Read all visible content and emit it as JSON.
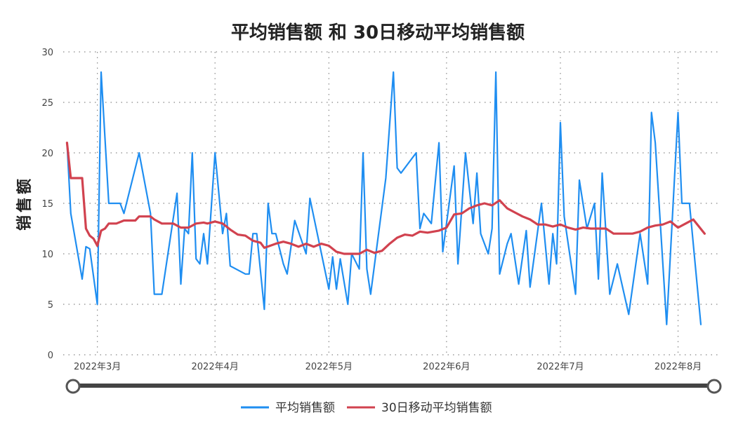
{
  "chart_data": {
    "type": "line",
    "title": "平均销售额 和 30日移动平均销售额",
    "xlabel": "",
    "ylabel": "销售额",
    "ylim": [
      0,
      30
    ],
    "yticks": [
      0,
      5,
      10,
      15,
      20,
      25,
      30
    ],
    "xticks": [
      {
        "date": "2022-03-01",
        "label": "2022年3月"
      },
      {
        "date": "2022-04-01",
        "label": "2022年4月"
      },
      {
        "date": "2022-05-01",
        "label": "2022年5月"
      },
      {
        "date": "2022-06-01",
        "label": "2022年6月"
      },
      {
        "date": "2022-07-01",
        "label": "2022年7月"
      },
      {
        "date": "2022-08-01",
        "label": "2022年8月"
      }
    ],
    "xlim": [
      "2022-02-20",
      "2022-08-12"
    ],
    "grid": true,
    "legend_position": "bottom",
    "range_slider": true,
    "series": [
      {
        "name": "平均销售额",
        "color": "#1f8ef1",
        "points": [
          [
            "2022-02-21",
            21
          ],
          [
            "2022-02-22",
            14
          ],
          [
            "2022-02-25",
            7.5
          ],
          [
            "2022-02-26",
            10.7
          ],
          [
            "2022-02-27",
            10.5
          ],
          [
            "2022-03-01",
            5
          ],
          [
            "2022-03-02",
            28
          ],
          [
            "2022-03-04",
            15
          ],
          [
            "2022-03-07",
            15
          ],
          [
            "2022-03-08",
            14
          ],
          [
            "2022-03-12",
            20
          ],
          [
            "2022-03-15",
            14
          ],
          [
            "2022-03-16",
            6
          ],
          [
            "2022-03-18",
            6
          ],
          [
            "2022-03-22",
            16
          ],
          [
            "2022-03-23",
            7
          ],
          [
            "2022-03-24",
            12.5
          ],
          [
            "2022-03-25",
            12
          ],
          [
            "2022-03-26",
            20
          ],
          [
            "2022-03-27",
            9.5
          ],
          [
            "2022-03-28",
            9
          ],
          [
            "2022-03-29",
            12
          ],
          [
            "2022-03-30",
            9
          ],
          [
            "2022-04-01",
            20
          ],
          [
            "2022-04-03",
            12
          ],
          [
            "2022-04-04",
            14
          ],
          [
            "2022-04-05",
            8.8
          ],
          [
            "2022-04-09",
            8
          ],
          [
            "2022-04-10",
            8
          ],
          [
            "2022-04-11",
            12
          ],
          [
            "2022-04-12",
            12
          ],
          [
            "2022-04-14",
            4.5
          ],
          [
            "2022-04-15",
            15
          ],
          [
            "2022-04-16",
            12
          ],
          [
            "2022-04-17",
            12
          ],
          [
            "2022-04-19",
            9
          ],
          [
            "2022-04-20",
            8
          ],
          [
            "2022-04-22",
            13.3
          ],
          [
            "2022-04-25",
            10
          ],
          [
            "2022-04-26",
            15.5
          ],
          [
            "2022-05-01",
            6.5
          ],
          [
            "2022-05-02",
            9.7
          ],
          [
            "2022-05-03",
            6.5
          ],
          [
            "2022-05-04",
            9.5
          ],
          [
            "2022-05-06",
            5
          ],
          [
            "2022-05-07",
            10
          ],
          [
            "2022-05-09",
            8.5
          ],
          [
            "2022-05-10",
            20
          ],
          [
            "2022-05-11",
            8.5
          ],
          [
            "2022-05-12",
            6
          ],
          [
            "2022-05-16",
            17.5
          ],
          [
            "2022-05-18",
            28
          ],
          [
            "2022-05-19",
            18.5
          ],
          [
            "2022-05-20",
            18
          ],
          [
            "2022-05-24",
            20
          ],
          [
            "2022-05-25",
            12.5
          ],
          [
            "2022-05-26",
            14
          ],
          [
            "2022-05-28",
            13
          ],
          [
            "2022-05-30",
            21
          ],
          [
            "2022-05-31",
            10.2
          ],
          [
            "2022-06-03",
            18.7
          ],
          [
            "2022-06-04",
            9
          ],
          [
            "2022-06-06",
            20
          ],
          [
            "2022-06-08",
            13
          ],
          [
            "2022-06-09",
            18
          ],
          [
            "2022-06-10",
            12
          ],
          [
            "2022-06-12",
            10
          ],
          [
            "2022-06-13",
            12.5
          ],
          [
            "2022-06-14",
            28
          ],
          [
            "2022-06-15",
            8
          ],
          [
            "2022-06-17",
            11
          ],
          [
            "2022-06-18",
            12
          ],
          [
            "2022-06-20",
            7
          ],
          [
            "2022-06-22",
            12.3
          ],
          [
            "2022-06-23",
            6.7
          ],
          [
            "2022-06-26",
            15
          ],
          [
            "2022-06-28",
            7
          ],
          [
            "2022-06-29",
            12
          ],
          [
            "2022-06-30",
            9
          ],
          [
            "2022-07-01",
            23
          ],
          [
            "2022-07-02",
            13.7
          ],
          [
            "2022-07-05",
            6
          ],
          [
            "2022-07-06",
            17.3
          ],
          [
            "2022-07-08",
            12.5
          ],
          [
            "2022-07-10",
            15
          ],
          [
            "2022-07-11",
            7.5
          ],
          [
            "2022-07-12",
            18
          ],
          [
            "2022-07-14",
            6
          ],
          [
            "2022-07-16",
            9
          ],
          [
            "2022-07-19",
            4
          ],
          [
            "2022-07-22",
            12
          ],
          [
            "2022-07-24",
            7
          ],
          [
            "2022-07-25",
            24
          ],
          [
            "2022-07-26",
            21
          ],
          [
            "2022-07-29",
            3
          ],
          [
            "2022-08-01",
            24
          ],
          [
            "2022-08-02",
            15
          ],
          [
            "2022-08-04",
            15
          ],
          [
            "2022-08-07",
            3
          ]
        ]
      },
      {
        "name": "30日移动平均销售额",
        "color": "#d1424f",
        "points": [
          [
            "2022-02-21",
            21
          ],
          [
            "2022-02-22",
            17.5
          ],
          [
            "2022-02-25",
            17.5
          ],
          [
            "2022-02-26",
            12.5
          ],
          [
            "2022-02-27",
            11.8
          ],
          [
            "2022-02-28",
            11.5
          ],
          [
            "2022-03-01",
            10.8
          ],
          [
            "2022-03-02",
            12.3
          ],
          [
            "2022-03-03",
            12.5
          ],
          [
            "2022-03-04",
            13
          ],
          [
            "2022-03-06",
            13
          ],
          [
            "2022-03-08",
            13.3
          ],
          [
            "2022-03-11",
            13.3
          ],
          [
            "2022-03-12",
            13.7
          ],
          [
            "2022-03-15",
            13.7
          ],
          [
            "2022-03-16",
            13.4
          ],
          [
            "2022-03-18",
            13
          ],
          [
            "2022-03-21",
            13
          ],
          [
            "2022-03-23",
            12.6
          ],
          [
            "2022-03-25",
            12.6
          ],
          [
            "2022-03-27",
            13
          ],
          [
            "2022-03-29",
            13.1
          ],
          [
            "2022-03-30",
            13
          ],
          [
            "2022-04-01",
            13.2
          ],
          [
            "2022-04-03",
            13
          ],
          [
            "2022-04-05",
            12.4
          ],
          [
            "2022-04-07",
            11.9
          ],
          [
            "2022-04-09",
            11.8
          ],
          [
            "2022-04-11",
            11.3
          ],
          [
            "2022-04-13",
            11.1
          ],
          [
            "2022-04-14",
            10.6
          ],
          [
            "2022-04-17",
            11
          ],
          [
            "2022-04-19",
            11.2
          ],
          [
            "2022-04-21",
            11
          ],
          [
            "2022-04-23",
            10.7
          ],
          [
            "2022-04-25",
            11
          ],
          [
            "2022-04-27",
            10.7
          ],
          [
            "2022-04-29",
            11
          ],
          [
            "2022-05-01",
            10.8
          ],
          [
            "2022-05-03",
            10.2
          ],
          [
            "2022-05-05",
            10
          ],
          [
            "2022-05-07",
            10
          ],
          [
            "2022-05-09",
            10
          ],
          [
            "2022-05-11",
            10.4
          ],
          [
            "2022-05-13",
            10.1
          ],
          [
            "2022-05-15",
            10.3
          ],
          [
            "2022-05-17",
            11
          ],
          [
            "2022-05-19",
            11.6
          ],
          [
            "2022-05-21",
            11.9
          ],
          [
            "2022-05-23",
            11.8
          ],
          [
            "2022-05-25",
            12.2
          ],
          [
            "2022-05-27",
            12.1
          ],
          [
            "2022-05-30",
            12.3
          ],
          [
            "2022-06-01",
            12.6
          ],
          [
            "2022-06-03",
            13.9
          ],
          [
            "2022-06-05",
            14
          ],
          [
            "2022-06-07",
            14.5
          ],
          [
            "2022-06-09",
            14.8
          ],
          [
            "2022-06-11",
            15
          ],
          [
            "2022-06-13",
            14.8
          ],
          [
            "2022-06-15",
            15.3
          ],
          [
            "2022-06-17",
            14.5
          ],
          [
            "2022-06-19",
            14.1
          ],
          [
            "2022-06-21",
            13.7
          ],
          [
            "2022-06-23",
            13.4
          ],
          [
            "2022-06-25",
            12.9
          ],
          [
            "2022-06-27",
            12.9
          ],
          [
            "2022-06-29",
            12.7
          ],
          [
            "2022-07-01",
            12.9
          ],
          [
            "2022-07-03",
            12.6
          ],
          [
            "2022-07-05",
            12.4
          ],
          [
            "2022-07-07",
            12.6
          ],
          [
            "2022-07-09",
            12.5
          ],
          [
            "2022-07-11",
            12.5
          ],
          [
            "2022-07-13",
            12.5
          ],
          [
            "2022-07-15",
            12
          ],
          [
            "2022-07-17",
            12
          ],
          [
            "2022-07-20",
            12
          ],
          [
            "2022-07-22",
            12.2
          ],
          [
            "2022-07-24",
            12.6
          ],
          [
            "2022-07-26",
            12.8
          ],
          [
            "2022-07-28",
            12.9
          ],
          [
            "2022-07-30",
            13.2
          ],
          [
            "2022-08-01",
            12.6
          ],
          [
            "2022-08-03",
            13
          ],
          [
            "2022-08-05",
            13.4
          ],
          [
            "2022-08-08",
            12
          ]
        ]
      }
    ]
  }
}
